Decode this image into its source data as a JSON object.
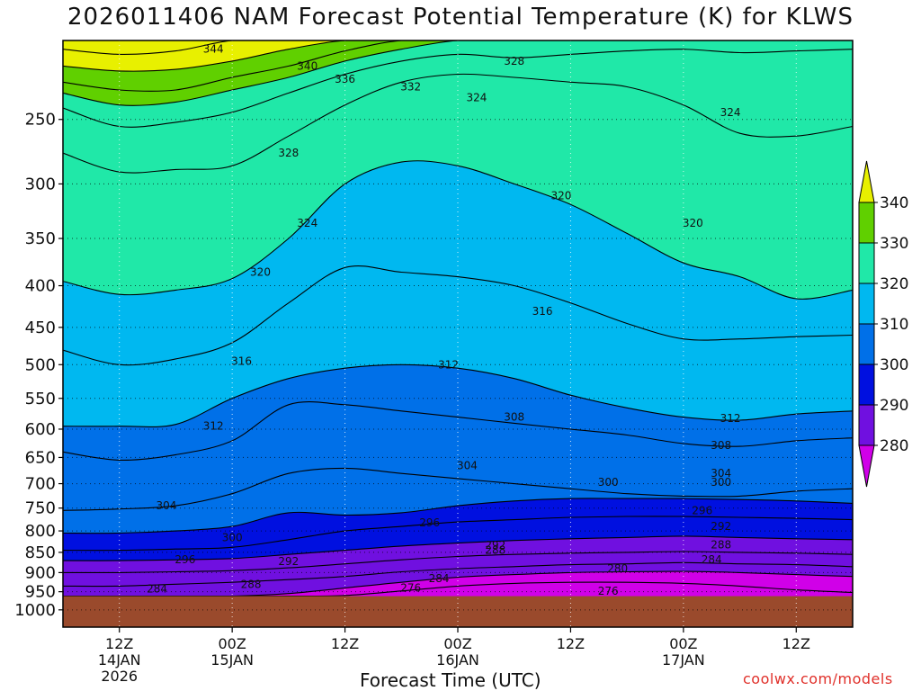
{
  "chart_data": {
    "type": "contour",
    "title": "2026011406 NAM Forecast Potential Temperature (K) for KLWS",
    "xlabel": "Forecast Time (UTC)",
    "ylabel": "",
    "x_ticks": [
      {
        "hour": 6,
        "lines": [
          "12Z",
          "14JAN",
          "2026"
        ]
      },
      {
        "hour": 18,
        "lines": [
          "00Z",
          "15JAN"
        ]
      },
      {
        "hour": 30,
        "lines": [
          "12Z"
        ]
      },
      {
        "hour": 42,
        "lines": [
          "00Z",
          "16JAN"
        ]
      },
      {
        "hour": 54,
        "lines": [
          "12Z"
        ]
      },
      {
        "hour": 66,
        "lines": [
          "00Z",
          "17JAN"
        ]
      },
      {
        "hour": 78,
        "lines": [
          "12Z"
        ]
      }
    ],
    "xlim": [
      0,
      84
    ],
    "y_ticks": [
      250,
      300,
      350,
      400,
      450,
      500,
      550,
      600,
      650,
      700,
      750,
      800,
      850,
      900,
      950,
      1000
    ],
    "ylim_hPa": [
      200,
      1050
    ],
    "y_scale": "log-pressure",
    "ground_pressure_hPa": 962,
    "contour_interval_K": 4,
    "contours": [
      {
        "level": 344,
        "p": [
          205,
          208,
          206,
          200,
          200,
          200,
          200,
          200,
          200,
          200,
          200,
          200,
          200,
          200,
          200
        ]
      },
      {
        "level": 340,
        "p": [
          215,
          218,
          217,
          212,
          205,
          200,
          200,
          200,
          200,
          200,
          200,
          200,
          200,
          200,
          200
        ]
      },
      {
        "level": 336,
        "p": [
          225,
          230,
          230,
          222,
          215,
          206,
          200,
          200,
          200,
          200,
          200,
          200,
          200,
          200,
          200
        ]
      },
      {
        "level": 332,
        "p": [
          232,
          240,
          238,
          230,
          222,
          212,
          205,
          200,
          200,
          200,
          200,
          200,
          200,
          200,
          200
        ]
      },
      {
        "level": 328,
        "p": [
          242,
          255,
          252,
          245,
          232,
          220,
          212,
          208,
          210,
          208,
          206,
          205,
          207,
          206,
          205
        ]
      },
      {
        "level": 324,
        "p": [
          275,
          290,
          288,
          285,
          262,
          240,
          225,
          220,
          222,
          225,
          228,
          240,
          260,
          262,
          255
        ]
      },
      {
        "level": 320,
        "p": [
          395,
          410,
          405,
          392,
          350,
          300,
          282,
          285,
          300,
          318,
          345,
          375,
          390,
          415,
          405
        ]
      },
      {
        "level": 316,
        "p": [
          480,
          500,
          492,
          470,
          420,
          380,
          385,
          390,
          400,
          420,
          445,
          465,
          465,
          462,
          460
        ]
      },
      {
        "level": 312,
        "p": [
          595,
          595,
          592,
          550,
          520,
          505,
          500,
          505,
          520,
          545,
          565,
          580,
          585,
          575,
          570
        ]
      },
      {
        "level": 308,
        "p": [
          640,
          655,
          645,
          620,
          560,
          560,
          570,
          580,
          590,
          600,
          610,
          625,
          630,
          620,
          615
        ]
      },
      {
        "level": 304,
        "p": [
          755,
          752,
          745,
          720,
          680,
          670,
          680,
          690,
          700,
          710,
          720,
          725,
          725,
          715,
          710
        ]
      },
      {
        "level": 300,
        "p": [
          805,
          805,
          800,
          790,
          760,
          765,
          760,
          745,
          735,
          730,
          730,
          730,
          732,
          735,
          740
        ]
      },
      {
        "level": 296,
        "p": [
          845,
          845,
          842,
          838,
          820,
          800,
          790,
          780,
          775,
          770,
          768,
          768,
          770,
          772,
          775
        ]
      },
      {
        "level": 292,
        "p": [
          870,
          870,
          868,
          865,
          855,
          845,
          835,
          828,
          822,
          818,
          815,
          812,
          815,
          818,
          820
        ]
      },
      {
        "level": 288,
        "p": [
          900,
          900,
          898,
          895,
          888,
          878,
          868,
          860,
          855,
          852,
          850,
          848,
          850,
          852,
          855
        ]
      },
      {
        "level": 284,
        "p": [
          935,
          935,
          930,
          925,
          918,
          910,
          898,
          890,
          885,
          880,
          878,
          875,
          878,
          880,
          885
        ]
      },
      {
        "level": 280,
        "p": [
          962,
          962,
          962,
          962,
          955,
          940,
          925,
          912,
          905,
          900,
          898,
          897,
          900,
          905,
          910
        ]
      },
      {
        "level": 276,
        "p": [
          962,
          962,
          962,
          962,
          962,
          960,
          948,
          935,
          928,
          925,
          925,
          928,
          935,
          945,
          952
        ]
      }
    ],
    "contour_labels": [
      {
        "text": "344",
        "hour": 16,
        "p": 205
      },
      {
        "text": "340",
        "hour": 26,
        "p": 215
      },
      {
        "text": "336",
        "hour": 30,
        "p": 223
      },
      {
        "text": "332",
        "hour": 37,
        "p": 228
      },
      {
        "text": "328",
        "hour": 48,
        "p": 212
      },
      {
        "text": "324",
        "hour": 44,
        "p": 235
      },
      {
        "text": "328",
        "hour": 24,
        "p": 275
      },
      {
        "text": "324",
        "hour": 26,
        "p": 335
      },
      {
        "text": "324",
        "hour": 71,
        "p": 245
      },
      {
        "text": "320",
        "hour": 53,
        "p": 310
      },
      {
        "text": "320",
        "hour": 67,
        "p": 335
      },
      {
        "text": "320",
        "hour": 21,
        "p": 385
      },
      {
        "text": "316",
        "hour": 51,
        "p": 430
      },
      {
        "text": "316",
        "hour": 19,
        "p": 495
      },
      {
        "text": "312",
        "hour": 41,
        "p": 500
      },
      {
        "text": "312",
        "hour": 16,
        "p": 595
      },
      {
        "text": "312",
        "hour": 71,
        "p": 582
      },
      {
        "text": "308",
        "hour": 48,
        "p": 580
      },
      {
        "text": "308",
        "hour": 70,
        "p": 628
      },
      {
        "text": "304",
        "hour": 43,
        "p": 665
      },
      {
        "text": "304",
        "hour": 70,
        "p": 680
      },
      {
        "text": "304",
        "hour": 11,
        "p": 745
      },
      {
        "text": "300",
        "hour": 58,
        "p": 697
      },
      {
        "text": "300",
        "hour": 70,
        "p": 697
      },
      {
        "text": "300",
        "hour": 18,
        "p": 815
      },
      {
        "text": "296",
        "hour": 39,
        "p": 782
      },
      {
        "text": "296",
        "hour": 68,
        "p": 755
      },
      {
        "text": "296",
        "hour": 13,
        "p": 868
      },
      {
        "text": "292",
        "hour": 46,
        "p": 833
      },
      {
        "text": "292",
        "hour": 70,
        "p": 790
      },
      {
        "text": "292",
        "hour": 24,
        "p": 872
      },
      {
        "text": "288",
        "hour": 46,
        "p": 845
      },
      {
        "text": "288",
        "hour": 70,
        "p": 832
      },
      {
        "text": "288",
        "hour": 20,
        "p": 930
      },
      {
        "text": "284",
        "hour": 40,
        "p": 915
      },
      {
        "text": "284",
        "hour": 69,
        "p": 868
      },
      {
        "text": "284",
        "hour": 10,
        "p": 942
      },
      {
        "text": "280",
        "hour": 59,
        "p": 890
      },
      {
        "text": "276",
        "hour": 37,
        "p": 940
      },
      {
        "text": "276",
        "hour": 58,
        "p": 948
      }
    ],
    "fill_bands": [
      {
        "range": [
          340,
          999
        ],
        "color": "#e8f000"
      },
      {
        "range": [
          330,
          340
        ],
        "color": "#60d000"
      },
      {
        "range": [
          320,
          330
        ],
        "color": "#20e8a8"
      },
      {
        "range": [
          310,
          320
        ],
        "color": "#00b8f0"
      },
      {
        "range": [
          300,
          310
        ],
        "color": "#0070e8"
      },
      {
        "range": [
          290,
          300
        ],
        "color": "#0010e0"
      },
      {
        "range": [
          280,
          290
        ],
        "color": "#7010e0"
      },
      {
        "range": [
          0,
          280
        ],
        "color": "#d000e8"
      }
    ],
    "ground_color": "#9a4a2c",
    "legend": {
      "position": "right",
      "labels": [
        "340",
        "330",
        "320",
        "310",
        "300",
        "290",
        "280"
      ]
    },
    "grid": true
  },
  "credit": "coolwx.com/models"
}
